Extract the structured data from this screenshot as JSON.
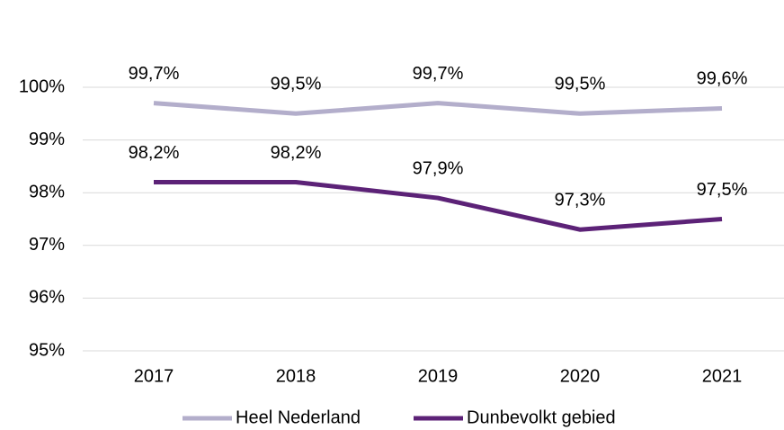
{
  "chart_data": {
    "type": "line",
    "categories": [
      "2017",
      "2018",
      "2019",
      "2020",
      "2021"
    ],
    "series": [
      {
        "name": "Heel Nederland",
        "color": "#b3aecb",
        "values": [
          99.7,
          99.5,
          99.7,
          99.5,
          99.6
        ],
        "value_labels": [
          "99,7%",
          "99,5%",
          "99,7%",
          "99,5%",
          "99,6%"
        ]
      },
      {
        "name": "Dunbevolkt gebied",
        "color": "#5c2277",
        "values": [
          98.2,
          98.2,
          97.9,
          97.3,
          97.5
        ],
        "value_labels": [
          "98,2%",
          "98,2%",
          "97,9%",
          "97,3%",
          "97,5%"
        ]
      }
    ],
    "ylim": [
      95,
      100
    ],
    "yticks": [
      {
        "value": 95,
        "label": "95%"
      },
      {
        "value": 96,
        "label": "96%"
      },
      {
        "value": 97,
        "label": "97%"
      },
      {
        "value": 98,
        "label": "98%"
      },
      {
        "value": 99,
        "label": "99%"
      },
      {
        "value": 100,
        "label": "100%"
      }
    ],
    "grid": true,
    "legend": "bottom"
  }
}
